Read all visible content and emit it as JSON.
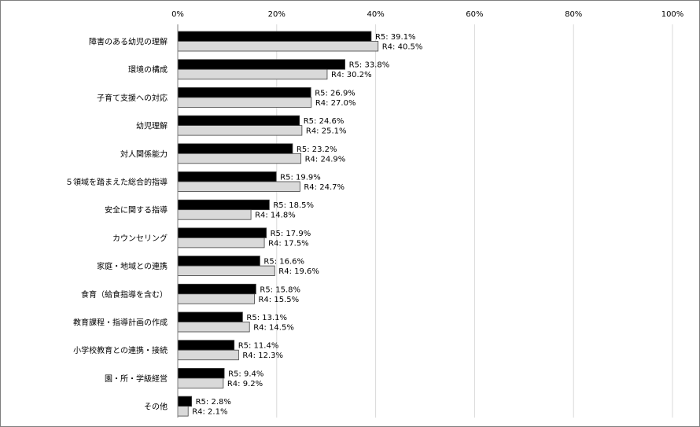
{
  "chart_data": {
    "type": "bar",
    "orientation": "horizontal",
    "title": "",
    "xlabel": "",
    "ylabel": "",
    "xlim": [
      0,
      100
    ],
    "x_ticks": [
      "0%",
      "20%",
      "40%",
      "60%",
      "80%",
      "100%"
    ],
    "x_axis_position": "top",
    "grid": true,
    "legend": "none",
    "categories": [
      "障害のある幼児の理解",
      "環境の構成",
      "子育て支援への対応",
      "幼児理解",
      "対人関係能力",
      "５領域を踏まえた総合的指導",
      "安全に関する指導",
      "カウンセリング",
      "家庭・地域との連携",
      "食育（給食指導を含む）",
      "教育課程・指導計画の作成",
      "小学校教育との連携・接続",
      "園・所・学級経営",
      "その他"
    ],
    "series": [
      {
        "name": "R5",
        "color": "#000000",
        "values": [
          39.1,
          33.8,
          26.9,
          24.6,
          23.2,
          19.9,
          18.5,
          17.9,
          16.6,
          15.8,
          13.1,
          11.4,
          9.4,
          2.8
        ],
        "labels": [
          "R5: 39.1%",
          "R5: 33.8%",
          "R5: 26.9%",
          "R5: 24.6%",
          "R5: 23.2%",
          "R5: 19.9%",
          "R5: 18.5%",
          "R5: 17.9%",
          "R5: 16.6%",
          "R5: 15.8%",
          "R5: 13.1%",
          "R5: 11.4%",
          "R5: 9.4%",
          "R5: 2.8%"
        ]
      },
      {
        "name": "R4",
        "color": "#d9d9d9",
        "values": [
          40.5,
          30.2,
          27.0,
          25.1,
          24.9,
          24.7,
          14.8,
          17.5,
          19.6,
          15.5,
          14.5,
          12.3,
          9.2,
          2.1
        ],
        "labels": [
          "R4: 40.5%",
          "R4: 30.2%",
          "R4: 27.0%",
          "R4: 25.1%",
          "R4: 24.9%",
          "R4: 24.7%",
          "R4: 14.8%",
          "R4: 17.5%",
          "R4: 19.6%",
          "R4: 15.5%",
          "R4: 14.5%",
          "R4: 12.3%",
          "R4: 9.2%",
          "R4: 2.1%"
        ]
      }
    ]
  }
}
